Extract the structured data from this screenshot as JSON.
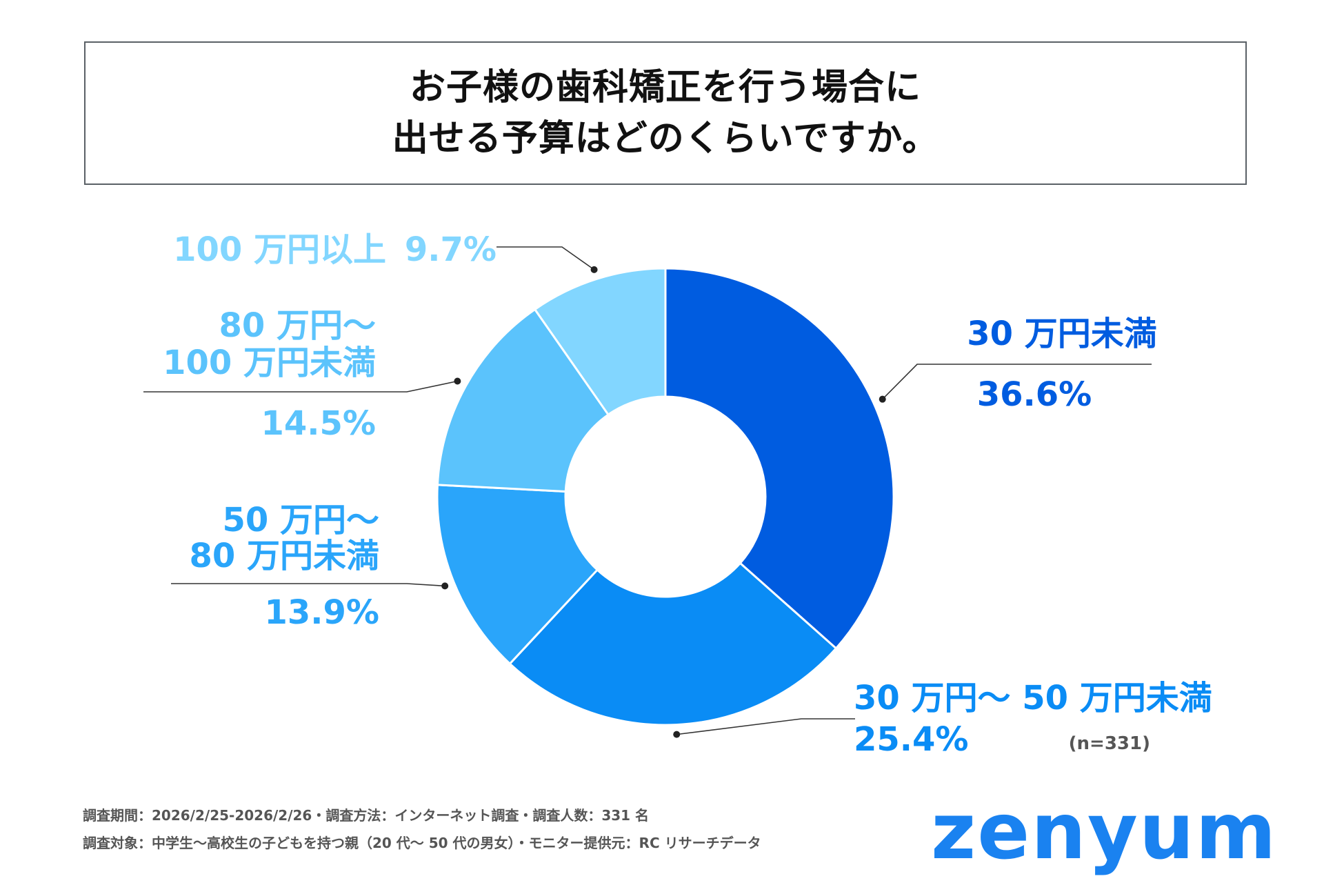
{
  "title": {
    "line1": "お子様の歯科矯正を行う場合に",
    "line2": "出せる予算はどのくらいですか。"
  },
  "chart_data": {
    "type": "pie",
    "donut": true,
    "title": "お子様の歯科矯正を行う場合に出せる予算はどのくらいですか。",
    "sample_size": "(n=331)",
    "slices": [
      {
        "label": "30 万円未満",
        "label_lines": [
          "30 万円未満"
        ],
        "value": 36.6,
        "pct_text": "36.6%",
        "color": "#005ce0"
      },
      {
        "label": "30 万円〜 50 万円未満",
        "label_lines": [
          "30 万円〜 50 万円未満"
        ],
        "value": 25.4,
        "pct_text": "25.4%",
        "color": "#0a8cf5"
      },
      {
        "label": "50 万円〜80 万円未満",
        "label_lines": [
          "50 万円〜",
          "80 万円未満"
        ],
        "value": 13.9,
        "pct_text": "13.9%",
        "color": "#2aa5fa"
      },
      {
        "label": "80 万円〜100 万円未満",
        "label_lines": [
          "80 万円〜",
          "100 万円未満"
        ],
        "value": 14.5,
        "pct_text": "14.5%",
        "color": "#5bc3fc"
      },
      {
        "label": "100 万円以上",
        "label_lines": [
          "100 万円以上"
        ],
        "value": 9.7,
        "pct_text": "9.7%",
        "color": "#82d6ff"
      }
    ]
  },
  "footer": {
    "line1": "調査期間：2026/2/25-2026/2/26・調査方法：インターネット調査・調査人数：331 名",
    "line2": "調査対象：中学生〜高校生の子どもを持つ親（20 代〜 50 代の男女）・モニター提供元：RC リサーチデータ"
  },
  "brand": {
    "logo_text": "zenyum",
    "color": "#1a82f0"
  }
}
